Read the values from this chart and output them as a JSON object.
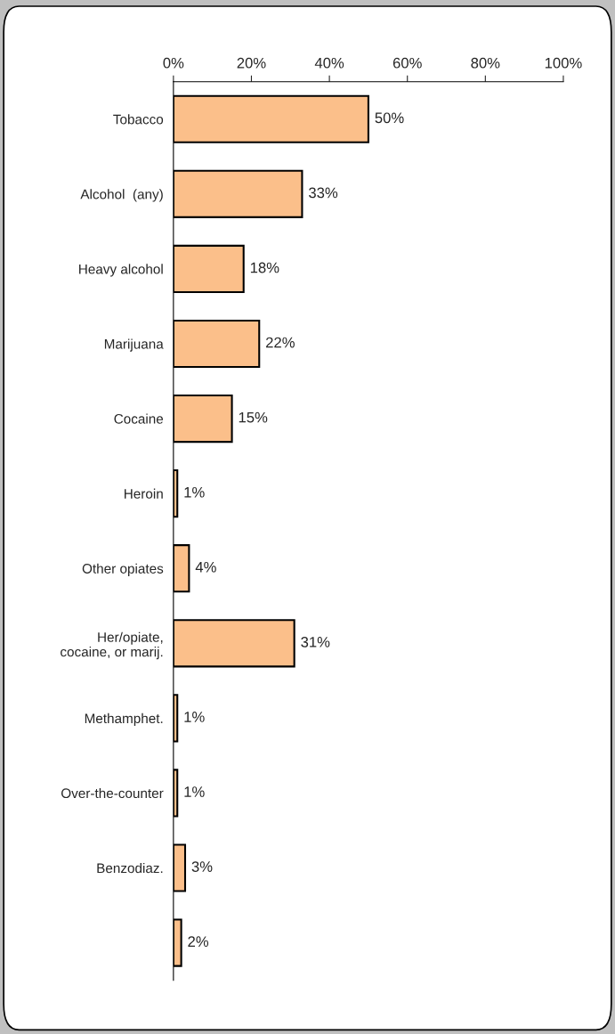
{
  "chart_data": {
    "type": "bar",
    "orientation": "horizontal",
    "categories": [
      "Tobacco",
      "Alcohol  (any)",
      "Heavy alcohol",
      "Marijuana",
      "Cocaine",
      "Heroin",
      "Other opiates",
      "Her/opiate,\ncocaine, or marij.",
      "Methamphet.",
      "Over-the-counter",
      "Benzodiaz.",
      null
    ],
    "values": [
      50,
      33,
      18,
      22,
      15,
      1,
      4,
      31,
      1,
      1,
      3,
      2
    ],
    "value_labels": [
      "50%",
      "33%",
      "18%",
      "22%",
      "15%",
      "1%",
      "4%",
      "31%",
      "1%",
      "1%",
      "3%",
      "2%"
    ],
    "color": "#fbbf8a",
    "xlim": [
      0,
      100
    ],
    "xticks": [
      {
        "value": 0,
        "label": "0%"
      },
      {
        "value": 20,
        "label": "20%"
      },
      {
        "value": 40,
        "label": "40%"
      },
      {
        "value": 60,
        "label": "60%"
      },
      {
        "value": 80,
        "label": "80%"
      },
      {
        "value": 100,
        "label": "100%"
      }
    ],
    "grid": false,
    "legend": false
  }
}
